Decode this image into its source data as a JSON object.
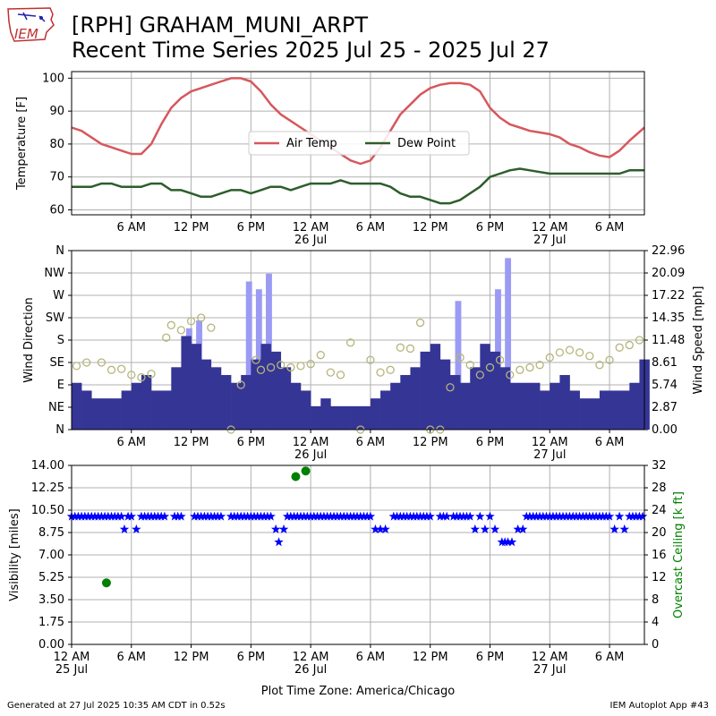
{
  "header": {
    "logo_text": "IEM",
    "title_line1": "[RPH] GRAHAM_MUNI_ARPT",
    "title_line2": "Recent Time Series 2025 Jul 25 - 2025 Jul 27"
  },
  "footer": {
    "generated": "Generated at 27 Jul 2025 10:35 AM CDT in 0.52s",
    "app": "IEM Autoplot App #43"
  },
  "colors": {
    "air_temp": "#d6585d",
    "dew_point": "#2e5e2b",
    "wind_speed": "#353596",
    "wind_gust": "#9b9bf5",
    "wind_dir": "#b5b57a",
    "visibility": "#0000ff",
    "ceiling": "#008000",
    "grid": "#b0b0b0"
  },
  "chart_data": [
    {
      "type": "line",
      "ylabel": "Temperature [F]",
      "ylim": [
        58.5,
        102
      ],
      "yticks": [
        60,
        70,
        80,
        90,
        100
      ],
      "xlim_hours": [
        0,
        57.5
      ],
      "xticks_hours": [
        6,
        12,
        18,
        24,
        30,
        36,
        42,
        48,
        54
      ],
      "xtick_labels": [
        "6 AM",
        "12 PM",
        "6 PM",
        "12 AM",
        "6 AM",
        "12 PM",
        "6 PM",
        "12 AM",
        "6 AM"
      ],
      "date_labels": [
        {
          "at": 24,
          "text": "26 Jul"
        },
        {
          "at": 48,
          "text": "27 Jul"
        }
      ],
      "legend": {
        "placement": "center",
        "entries": [
          "Air Temp",
          "Dew Point"
        ]
      },
      "series": [
        {
          "name": "Air Temp",
          "x": [
            0,
            1,
            2,
            3,
            4,
            5,
            6,
            7,
            8,
            9,
            10,
            11,
            12,
            13,
            14,
            15,
            16,
            17,
            18,
            19,
            20,
            21,
            22,
            23,
            24,
            25,
            26,
            27,
            28,
            29,
            30,
            31,
            32,
            33,
            34,
            35,
            36,
            37,
            38,
            39,
            40,
            41,
            42,
            43,
            44,
            45,
            46,
            47,
            48,
            49,
            50,
            51,
            52,
            53,
            54,
            55,
            56,
            57.5
          ],
          "y": [
            85,
            84,
            82,
            80,
            79,
            78,
            77,
            77,
            80,
            86,
            91,
            94,
            96,
            97,
            98,
            99,
            100,
            100,
            99,
            96,
            92,
            89,
            87,
            85,
            83,
            81,
            79,
            77,
            75,
            74,
            75,
            79,
            84,
            89,
            92,
            95,
            97,
            98,
            98.5,
            98.5,
            98,
            96,
            91,
            88,
            86,
            85,
            84,
            83.5,
            83,
            82,
            80,
            79,
            77.5,
            76.5,
            76,
            78,
            81,
            85
          ]
        },
        {
          "name": "Dew Point",
          "x": [
            0,
            1,
            2,
            3,
            4,
            5,
            6,
            7,
            8,
            9,
            10,
            11,
            12,
            13,
            14,
            15,
            16,
            17,
            18,
            19,
            20,
            21,
            22,
            23,
            24,
            25,
            26,
            27,
            28,
            29,
            30,
            31,
            32,
            33,
            34,
            35,
            36,
            37,
            38,
            39,
            40,
            41,
            42,
            43,
            44,
            45,
            46,
            47,
            48,
            49,
            50,
            51,
            52,
            53,
            54,
            55,
            56,
            57.5
          ],
          "y": [
            67,
            67,
            67,
            68,
            68,
            67,
            67,
            67,
            68,
            68,
            66,
            66,
            65,
            64,
            64,
            65,
            66,
            66,
            65,
            66,
            67,
            67,
            66,
            67,
            68,
            68,
            68,
            69,
            68,
            68,
            68,
            68,
            67,
            65,
            64,
            64,
            63,
            62,
            62,
            63,
            65,
            67,
            70,
            71,
            72,
            72.5,
            72,
            71.5,
            71,
            71,
            71,
            71,
            71,
            71,
            71,
            71,
            72,
            72
          ]
        }
      ]
    },
    {
      "type": "bar",
      "ylabel_left": "Wind Direction",
      "ylabel_right": "Wind Speed [mph]",
      "left_ticks": [
        "N",
        "NE",
        "E",
        "SE",
        "S",
        "SW",
        "W",
        "NW",
        "N"
      ],
      "right_ticks": [
        "0.00",
        "2.87",
        "5.74",
        "8.61",
        "11.48",
        "14.35",
        "17.22",
        "20.09",
        "22.96"
      ],
      "speed_max": 22.96,
      "xlim_hours": [
        0,
        57.5
      ],
      "xticks_hours": [
        6,
        12,
        18,
        24,
        30,
        36,
        42,
        48,
        54
      ],
      "xtick_labels": [
        "6 AM",
        "12 PM",
        "6 PM",
        "12 AM",
        "6 AM",
        "12 PM",
        "6 PM",
        "12 AM",
        "6 AM"
      ],
      "date_labels": [
        {
          "at": 24,
          "text": "26 Jul"
        },
        {
          "at": 48,
          "text": "27 Jul"
        }
      ],
      "series": [
        {
          "name": "Wind Speed",
          "x": [
            0,
            1,
            2,
            3,
            4,
            5,
            6,
            7,
            8,
            9,
            10,
            11,
            12,
            13,
            14,
            15,
            16,
            17,
            18,
            19,
            20,
            21,
            22,
            23,
            24,
            25,
            26,
            27,
            28,
            29,
            30,
            31,
            32,
            33,
            34,
            35,
            36,
            37,
            38,
            39,
            40,
            41,
            42,
            43,
            44,
            45,
            46,
            47,
            48,
            49,
            50,
            51,
            52,
            53,
            54,
            55,
            56,
            57
          ],
          "values": [
            6,
            5,
            4,
            4,
            4,
            5,
            6,
            7,
            5,
            5,
            8,
            12,
            11,
            9,
            8,
            7,
            6,
            7,
            9,
            11,
            10,
            8,
            6,
            5,
            3,
            4,
            3,
            3,
            3,
            3,
            4,
            5,
            6,
            7,
            8,
            10,
            11,
            9,
            7,
            6,
            8,
            11,
            10,
            8,
            6,
            6,
            6,
            5,
            6,
            7,
            5,
            4,
            4,
            5,
            5,
            5,
            6,
            9
          ]
        },
        {
          "name": "Wind Gust",
          "x": [
            11.5,
            12.5,
            17.5,
            18.5,
            19.5,
            38.5,
            42.5,
            43.5
          ],
          "values": [
            13,
            14,
            19,
            18,
            20,
            16.5,
            18,
            22
          ]
        },
        {
          "name": "Wind Direction",
          "x": [
            0.5,
            1.5,
            3,
            4,
            5,
            6,
            7,
            8,
            9.5,
            10,
            11,
            12,
            13,
            14,
            16,
            17,
            18.5,
            19,
            20,
            21,
            22,
            23,
            24,
            25,
            26,
            27,
            28,
            29,
            30,
            31,
            32,
            33,
            34,
            35,
            36,
            37,
            38,
            39,
            40,
            41,
            42,
            43,
            44,
            45,
            46,
            47,
            48,
            49,
            50,
            51,
            52,
            53,
            54,
            55,
            56,
            57
          ],
          "y_deg": [
            128,
            135,
            135,
            120,
            122,
            110,
            105,
            112,
            185,
            210,
            200,
            218,
            225,
            205,
            0,
            90,
            140,
            120,
            125,
            130,
            125,
            128,
            132,
            150,
            115,
            110,
            175,
            0,
            140,
            115,
            120,
            165,
            163,
            215,
            0,
            0,
            85,
            145,
            130,
            110,
            125,
            140,
            110,
            120,
            125,
            130,
            145,
            155,
            160,
            155,
            148,
            130,
            140,
            165,
            170,
            180
          ]
        }
      ]
    },
    {
      "type": "scatter",
      "ylabel_left": "Visibility [miles]",
      "ylabel_right": "Overcast Ceiling [k ft]",
      "left_ticks": [
        "0.00",
        "1.75",
        "3.50",
        "5.25",
        "7.00",
        "8.75",
        "10.50",
        "12.25",
        "14.00"
      ],
      "right_ticks": [
        "0",
        "4",
        "8",
        "12",
        "16",
        "20",
        "24",
        "28",
        "32"
      ],
      "vis_max": 14,
      "ceiling_max": 32,
      "xlim_hours": [
        0,
        57.5
      ],
      "xticks_hours": [
        0,
        6,
        12,
        18,
        24,
        30,
        36,
        42,
        48,
        54
      ],
      "xtick_labels": [
        "12 AM",
        "6 AM",
        "12 PM",
        "6 PM",
        "12 AM",
        "6 AM",
        "12 PM",
        "6 PM",
        "12 AM",
        "6 AM"
      ],
      "date_labels": [
        {
          "at": 0,
          "text": "25 Jul"
        },
        {
          "at": 24,
          "text": "26 Jul"
        },
        {
          "at": 48,
          "text": "27 Jul"
        }
      ],
      "xlabel": "Plot Time Zone: America/Chicago",
      "series": [
        {
          "name": "Visibility",
          "x": [
            5.3,
            6.5,
            20.5,
            20.8,
            21.3,
            30.5,
            31,
            31.5,
            40.5,
            41.5,
            42.5,
            43.2,
            43.5,
            43.8,
            44.2,
            44.8,
            45.3,
            54.5,
            55.5
          ],
          "y": [
            9,
            9,
            9,
            8,
            9,
            9,
            9,
            9,
            9,
            9,
            9,
            8,
            8,
            8,
            8,
            9,
            9,
            9,
            9
          ]
        },
        {
          "name": "Overcast Ceiling",
          "x": [
            3.5,
            22.5,
            23.5
          ],
          "y": [
            11,
            30,
            31
          ]
        }
      ]
    }
  ]
}
